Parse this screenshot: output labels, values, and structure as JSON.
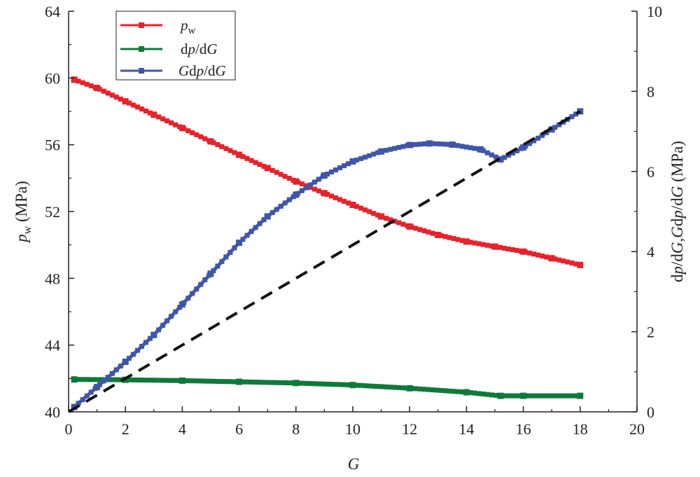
{
  "chart_data": {
    "type": "line",
    "title": "",
    "xlabel": "G",
    "ylabel_left": "p_w (MPa)",
    "ylabel_right": "dp/dG,Gdp/dG (MPa)",
    "xlim": [
      0,
      20
    ],
    "ylim_left": [
      40,
      64
    ],
    "ylim_right": [
      0,
      10
    ],
    "x_ticks": [
      "0",
      "2",
      "4",
      "6",
      "8",
      "10",
      "12",
      "14",
      "16",
      "18",
      "20"
    ],
    "y_left_ticks": [
      "40",
      "44",
      "48",
      "52",
      "56",
      "60",
      "64"
    ],
    "y_right_ticks": [
      "0",
      "2",
      "4",
      "6",
      "8",
      "10"
    ],
    "grid": false,
    "legend_position": "top-left",
    "legend": [
      {
        "label": "p_w",
        "color": "#e8212a"
      },
      {
        "label": "dp/dG",
        "color": "#0e7a3a"
      },
      {
        "label": "Gdp/dG",
        "color": "#3f56a8"
      }
    ],
    "series": [
      {
        "name": "p_w",
        "axis": "left",
        "color": "#e8212a",
        "x": [
          0.2,
          1,
          2,
          3,
          4,
          5,
          6,
          7,
          8,
          9,
          10,
          11,
          12,
          13,
          14,
          15,
          16,
          17,
          18
        ],
        "values": [
          59.9,
          59.4,
          58.6,
          57.8,
          57.0,
          56.2,
          55.4,
          54.6,
          53.8,
          53.1,
          52.4,
          51.7,
          51.1,
          50.6,
          50.2,
          49.9,
          49.6,
          49.2,
          48.8
        ]
      },
      {
        "name": "dp/dG",
        "axis": "right",
        "color": "#0e7a3a",
        "x": [
          0.2,
          2,
          4,
          6,
          8,
          10,
          12,
          14,
          15.2,
          16,
          18
        ],
        "values": [
          0.81,
          0.8,
          0.78,
          0.75,
          0.72,
          0.67,
          0.59,
          0.49,
          0.4,
          0.4,
          0.4
        ]
      },
      {
        "name": "Gdp/dG",
        "axis": "right",
        "color": "#3f56a8",
        "x": [
          0.2,
          1,
          2,
          3,
          4,
          5,
          6,
          7,
          8,
          9,
          10,
          11,
          12,
          12.7,
          13.5,
          14.5,
          15.2,
          16,
          17,
          18
        ],
        "values": [
          0.12,
          0.62,
          1.25,
          1.92,
          2.68,
          3.45,
          4.22,
          4.88,
          5.42,
          5.9,
          6.25,
          6.5,
          6.66,
          6.7,
          6.67,
          6.55,
          6.3,
          6.6,
          7.05,
          7.5
        ]
      },
      {
        "name": "reference line",
        "axis": "right",
        "color": "#111111",
        "style": "dashed",
        "x": [
          0,
          18
        ],
        "values": [
          0,
          7.5
        ]
      }
    ]
  }
}
